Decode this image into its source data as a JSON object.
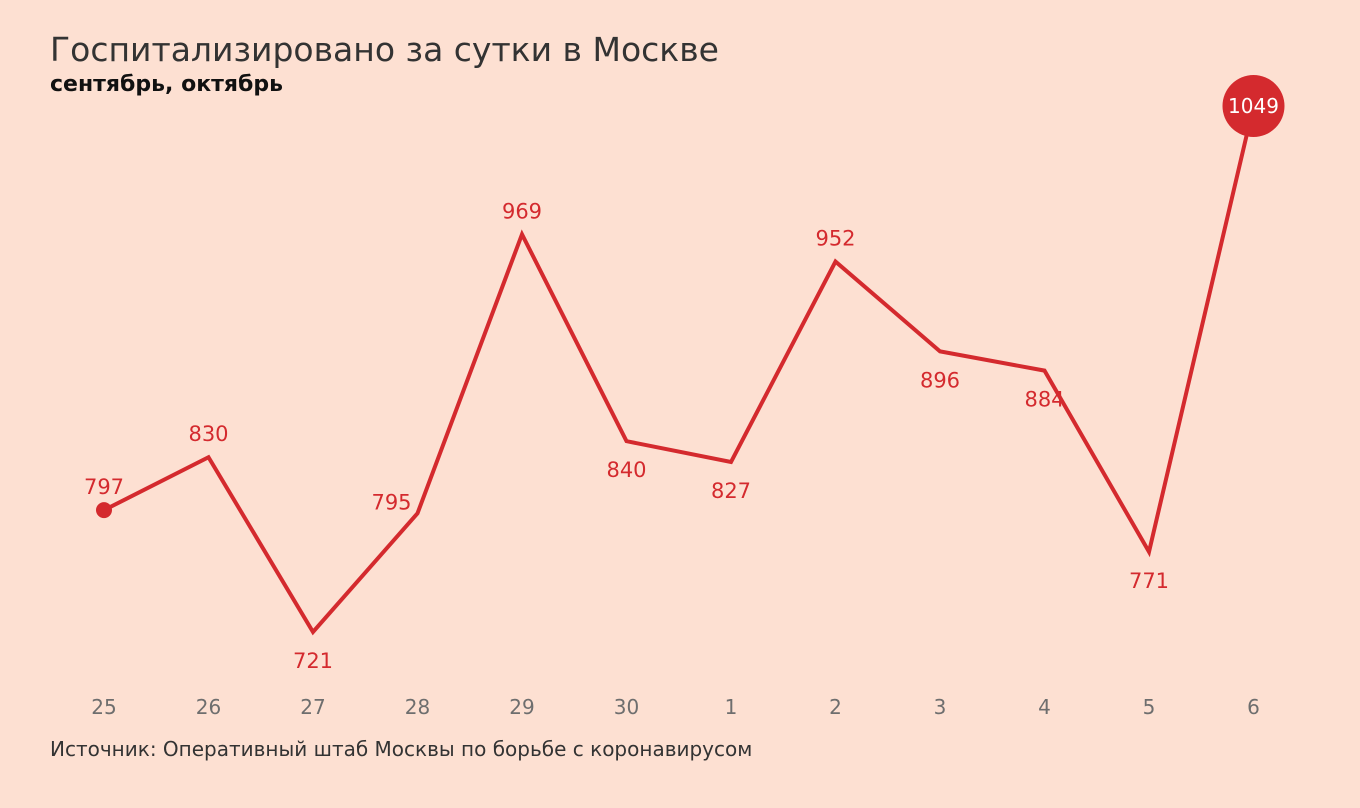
{
  "colors": {
    "background": "#fde0d2",
    "line": "#d42a2e",
    "value_label": "#d42a2e",
    "highlight_value_text": "#ffffff",
    "tick_label": "#6e6e6e",
    "title": "#333333",
    "subtitle": "#111111",
    "source": "#333333"
  },
  "header": {
    "title": "Госпитализировано за сутки в Москве",
    "subtitle": "сентябрь, октябрь"
  },
  "footer": {
    "source": "Источник: Оперативный штаб Москвы по борьбе с коронавирусом"
  },
  "chart_data": {
    "type": "line",
    "title": "Госпитализировано за сутки в Москве",
    "subtitle": "сентябрь, октябрь",
    "categories": [
      "25",
      "26",
      "27",
      "28",
      "29",
      "30",
      "1",
      "2",
      "3",
      "4",
      "5",
      "6"
    ],
    "series": [
      {
        "values": [
          797,
          830,
          721,
          795,
          969,
          840,
          827,
          952,
          896,
          884,
          771,
          1049
        ]
      }
    ],
    "data_labels": [
      "797",
      "830",
      "721",
      "795",
      "969",
      "840",
      "827",
      "952",
      "896",
      "884",
      "771",
      "1049"
    ],
    "label_positions": [
      "above",
      "above",
      "below",
      "left",
      "above",
      "below",
      "below",
      "above",
      "below",
      "below",
      "below",
      "center"
    ],
    "start_marker": true,
    "highlight_last": true,
    "ylim": [
      700,
      1080
    ],
    "grid": false,
    "legend": "none",
    "xlabel": "",
    "ylabel": ""
  }
}
